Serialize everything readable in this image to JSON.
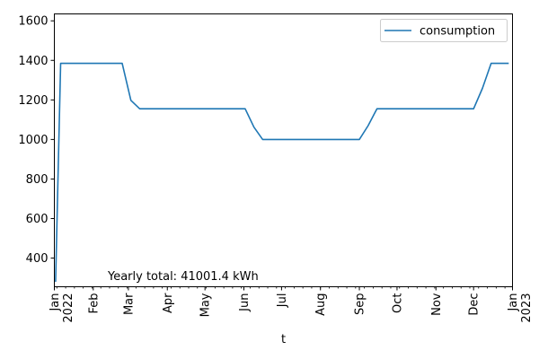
{
  "chart_data": {
    "type": "line",
    "xlabel": "t",
    "ylabel": "",
    "xlim": [
      "2022-01-01",
      "2023-01-01"
    ],
    "ylim": [
      255,
      1635
    ],
    "yticks": [
      400,
      600,
      800,
      1000,
      1200,
      1400,
      1600
    ],
    "xticks": [
      {
        "date": "2022-01-01",
        "label": "Jan",
        "sublabel": "2022"
      },
      {
        "date": "2022-02-01",
        "label": "Feb",
        "sublabel": ""
      },
      {
        "date": "2022-03-01",
        "label": "Mar",
        "sublabel": ""
      },
      {
        "date": "2022-04-01",
        "label": "Apr",
        "sublabel": ""
      },
      {
        "date": "2022-05-01",
        "label": "May",
        "sublabel": ""
      },
      {
        "date": "2022-06-01",
        "label": "Jun",
        "sublabel": ""
      },
      {
        "date": "2022-07-01",
        "label": "Jul",
        "sublabel": ""
      },
      {
        "date": "2022-08-01",
        "label": "Aug",
        "sublabel": ""
      },
      {
        "date": "2022-09-01",
        "label": "Sep",
        "sublabel": ""
      },
      {
        "date": "2022-10-01",
        "label": "Oct",
        "sublabel": ""
      },
      {
        "date": "2022-11-01",
        "label": "Nov",
        "sublabel": ""
      },
      {
        "date": "2022-12-01",
        "label": "Dec",
        "sublabel": ""
      },
      {
        "date": "2023-01-01",
        "label": "Jan",
        "sublabel": "2023"
      }
    ],
    "legend": {
      "position": "top-right"
    },
    "series": [
      {
        "name": "consumption",
        "color": "#1f77b4",
        "x": [
          "2022-01-02",
          "2022-01-06",
          "2022-01-13",
          "2022-01-20",
          "2022-01-27",
          "2022-02-03",
          "2022-02-10",
          "2022-02-17",
          "2022-02-24",
          "2022-03-03",
          "2022-03-10",
          "2022-03-17",
          "2022-03-24",
          "2022-03-31",
          "2022-04-07",
          "2022-04-14",
          "2022-04-21",
          "2022-04-28",
          "2022-05-05",
          "2022-05-12",
          "2022-05-19",
          "2022-05-26",
          "2022-06-02",
          "2022-06-09",
          "2022-06-16",
          "2022-06-23",
          "2022-06-30",
          "2022-07-07",
          "2022-07-14",
          "2022-07-21",
          "2022-07-28",
          "2022-08-04",
          "2022-08-11",
          "2022-08-18",
          "2022-08-25",
          "2022-09-01",
          "2022-09-08",
          "2022-09-15",
          "2022-09-22",
          "2022-09-29",
          "2022-10-06",
          "2022-10-13",
          "2022-10-20",
          "2022-10-27",
          "2022-11-03",
          "2022-11-10",
          "2022-11-17",
          "2022-11-24",
          "2022-12-01",
          "2022-12-08",
          "2022-12-15",
          "2022-12-22",
          "2022-12-29"
        ],
        "values": [
          280,
          1385,
          1385,
          1385,
          1385,
          1385,
          1385,
          1385,
          1385,
          1198,
          1155,
          1155,
          1155,
          1155,
          1155,
          1155,
          1155,
          1155,
          1155,
          1155,
          1155,
          1155,
          1155,
          1062,
          1000,
          1000,
          1000,
          1000,
          1000,
          1000,
          1000,
          1000,
          1000,
          1000,
          1000,
          1000,
          1070,
          1155,
          1155,
          1155,
          1155,
          1155,
          1155,
          1155,
          1155,
          1155,
          1155,
          1155,
          1155,
          1258,
          1385,
          1385,
          1385
        ]
      }
    ],
    "annotation": "Yearly total: 41001.4 kWh"
  }
}
